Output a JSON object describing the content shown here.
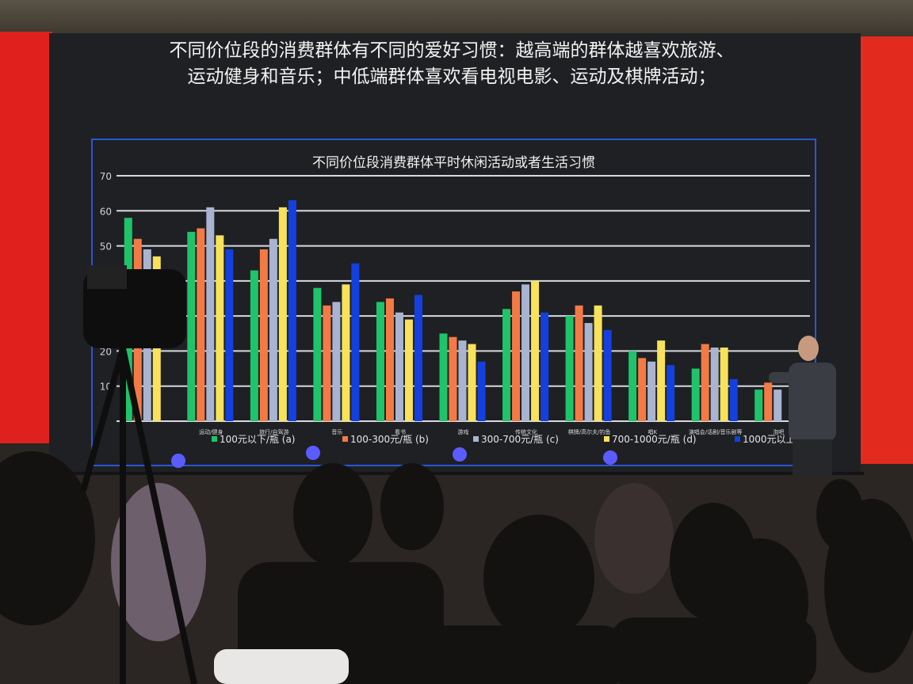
{
  "slide": {
    "headline_line1": "不同价位段的消费群体有不同的爱好习惯：越高端的群体越喜欢旅游、",
    "headline_line2": "运动健身和音乐；中低端群体喜欢看电视电影、运动及棋牌活动；"
  },
  "chart_data": {
    "type": "bar",
    "title": "不同价位段消费群体平时休闲活动或者生活习惯",
    "xlabel": "",
    "ylabel": "",
    "ylim": [
      0,
      70
    ],
    "yticks": [
      "10",
      "20",
      "30",
      "40",
      "50",
      "60",
      "70"
    ],
    "grid": true,
    "legend_position": "bottom",
    "categories": [
      "",
      "运动/健身",
      "旅行/自驾游",
      "音乐",
      "看书",
      "游戏",
      "传统文化",
      "棋牌/高尔夫/钓鱼",
      "唱K",
      "演唱会/话剧/音乐剧等",
      "泡吧"
    ],
    "series": [
      {
        "name": "100元以下/瓶 (a)",
        "color": "#1fc46a",
        "values": [
          58,
          54,
          43,
          38,
          34,
          25,
          32,
          30,
          20,
          15,
          9
        ]
      },
      {
        "name": "100-300元/瓶 (b)",
        "color": "#f47a45",
        "values": [
          52,
          55,
          49,
          33,
          35,
          24,
          37,
          33,
          18,
          22,
          11
        ]
      },
      {
        "name": "300-700元/瓶 (c)",
        "color": "#a9b4d0",
        "values": [
          49,
          61,
          52,
          34,
          31,
          23,
          39,
          28,
          17,
          21,
          9
        ]
      },
      {
        "name": "700-1000元/瓶 (d)",
        "color": "#f7e25a",
        "values": [
          47,
          53,
          61,
          39,
          29,
          22,
          40,
          33,
          23,
          21,
          null
        ]
      },
      {
        "name": "1000元以上 (f)",
        "color": "#1440e0",
        "values": [
          null,
          49,
          63,
          45,
          36,
          17,
          31,
          26,
          16,
          12,
          null
        ]
      }
    ]
  }
}
